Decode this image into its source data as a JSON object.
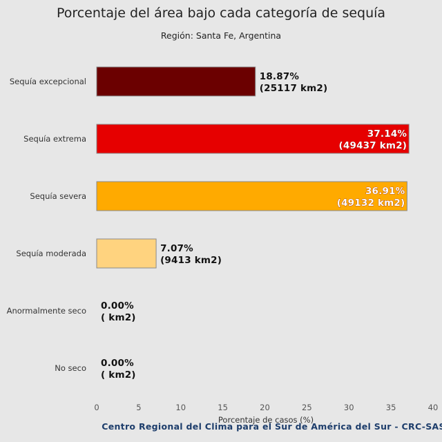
{
  "chart_data": {
    "type": "bar",
    "orientation": "horizontal",
    "title": "Porcentaje del área bajo cada categoría de sequía",
    "subtitle": "Región: Santa Fe, Argentina",
    "xlabel": "Porcentaje de casos (%)",
    "ylabel": "",
    "xlim": [
      0,
      40
    ],
    "xticks": [
      "0",
      "5",
      "10",
      "15",
      "20",
      "25",
      "30",
      "35",
      "40"
    ],
    "grid": false,
    "categories": [
      "Sequía excepcional",
      "Sequía extrema",
      "Sequía severa",
      "Sequía moderada",
      "Anormalmente seco",
      "No seco"
    ],
    "values": [
      18.87,
      37.14,
      36.91,
      7.07,
      0.0,
      0.0
    ],
    "pct_labels": [
      "18.87%",
      "37.14%",
      "36.91%",
      "7.07%",
      "0.00%",
      "0.00%"
    ],
    "area_labels": [
      "(25117 km2)",
      "(49437 km2)",
      "(49132 km2)",
      "(9413 km2)",
      "( km2)",
      "( km2)"
    ],
    "colors": [
      "#6b0000",
      "#e60000",
      "#ffaa00",
      "#ffd37f",
      "#ffff00",
      "#ffffff"
    ],
    "source": "Centro Regional del Clima para el Sur de América del Sur - CRC-SAS"
  }
}
